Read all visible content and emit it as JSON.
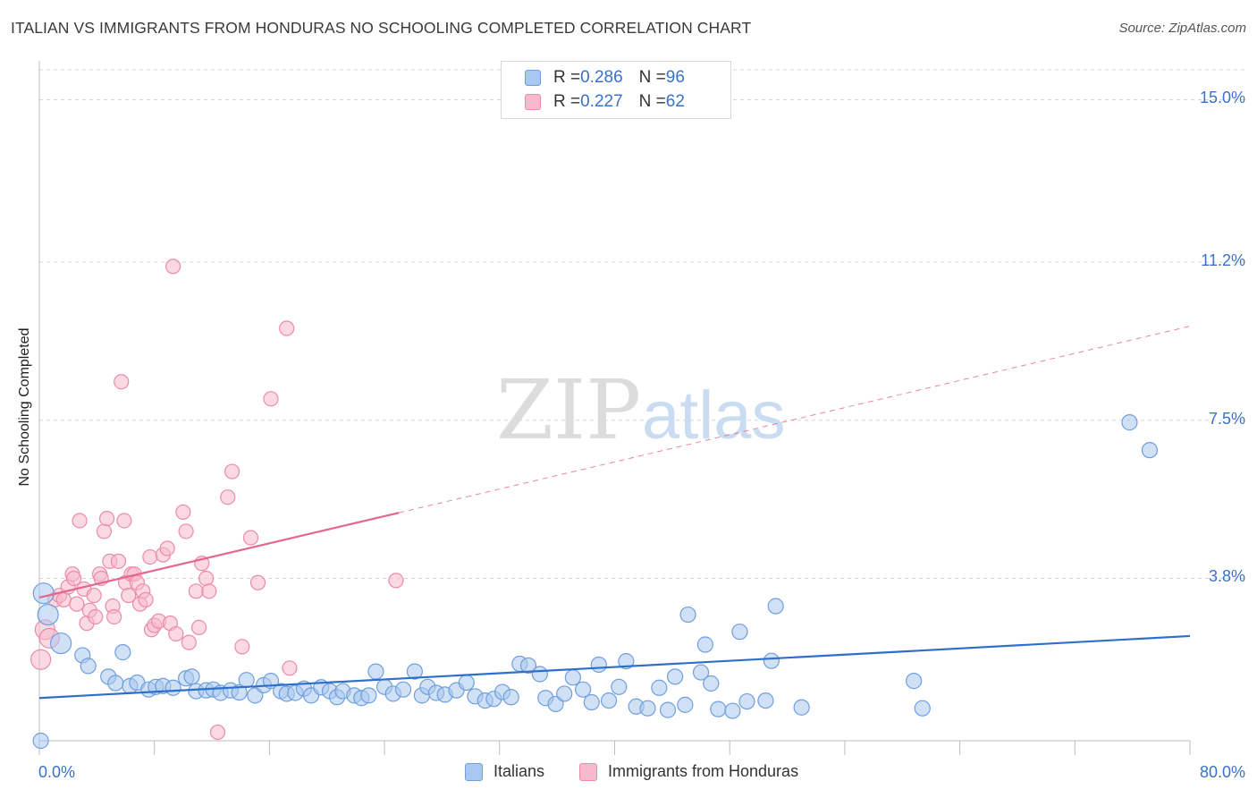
{
  "title": "ITALIAN VS IMMIGRANTS FROM HONDURAS NO SCHOOLING COMPLETED CORRELATION CHART",
  "source": "Source: ZipAtlas.com",
  "watermark": {
    "zip": "ZIP",
    "atlas": "atlas"
  },
  "legend": {
    "rows": [
      {
        "r_label": "R = ",
        "r_value": "0.286",
        "n_label": "N = ",
        "n_value": "96"
      },
      {
        "r_label": "R = ",
        "r_value": "0.227",
        "n_label": "N = ",
        "n_value": "62"
      }
    ]
  },
  "bottom_legend": {
    "italians": "Italians",
    "honduras": "Immigrants from Honduras"
  },
  "colors": {
    "italians_fill": "#a9c8ef",
    "italians_stroke": "#6f9fdc",
    "italians_line": "#2f6fcc",
    "honduras_fill": "#f7b9cc",
    "honduras_stroke": "#ec8aa9",
    "honduras_line": "#e4668f",
    "tick_text": "#3a72c8",
    "grid": "#d6d6d6"
  },
  "chart_data": {
    "type": "scatter",
    "title": "ITALIAN VS IMMIGRANTS FROM HONDURAS NO SCHOOLING COMPLETED CORRELATION CHART",
    "xlabel": "",
    "ylabel": "No Schooling Completed",
    "xlim": [
      0,
      80
    ],
    "ylim": [
      0,
      15.7
    ],
    "x_tick_labels": [
      "0.0%",
      "80.0%"
    ],
    "y_ticks": [
      3.8,
      7.5,
      11.2,
      15.0
    ],
    "y_tick_labels": [
      "3.8%",
      "7.5%",
      "11.2%",
      "15.0%"
    ],
    "grid": true,
    "series": [
      {
        "name": "Italians",
        "r": 0.286,
        "n": 96,
        "trend": {
          "x0": 0,
          "y0": 1.0,
          "x1": 80,
          "y1": 2.45,
          "dashed_from": null
        },
        "points": [
          [
            0.3,
            3.45
          ],
          [
            0.6,
            2.95
          ],
          [
            1.5,
            2.28
          ],
          [
            3.0,
            2.0
          ],
          [
            3.4,
            1.75
          ],
          [
            4.8,
            1.5
          ],
          [
            5.3,
            1.35
          ],
          [
            5.8,
            2.07
          ],
          [
            6.3,
            1.28
          ],
          [
            6.8,
            1.36
          ],
          [
            7.6,
            1.2
          ],
          [
            8.1,
            1.26
          ],
          [
            8.6,
            1.28
          ],
          [
            9.3,
            1.24
          ],
          [
            10.2,
            1.46
          ],
          [
            10.6,
            1.5
          ],
          [
            10.9,
            1.16
          ],
          [
            11.6,
            1.18
          ],
          [
            12.1,
            1.2
          ],
          [
            12.6,
            1.12
          ],
          [
            13.3,
            1.18
          ],
          [
            13.9,
            1.13
          ],
          [
            14.4,
            1.42
          ],
          [
            15.0,
            1.06
          ],
          [
            15.6,
            1.3
          ],
          [
            16.1,
            1.4
          ],
          [
            16.8,
            1.16
          ],
          [
            17.2,
            1.1
          ],
          [
            17.8,
            1.12
          ],
          [
            18.4,
            1.22
          ],
          [
            18.9,
            1.06
          ],
          [
            19.6,
            1.25
          ],
          [
            20.2,
            1.16
          ],
          [
            20.7,
            1.02
          ],
          [
            21.1,
            1.16
          ],
          [
            21.9,
            1.06
          ],
          [
            22.4,
            1.0
          ],
          [
            22.9,
            1.06
          ],
          [
            23.4,
            1.62
          ],
          [
            24.0,
            1.26
          ],
          [
            24.6,
            1.1
          ],
          [
            25.3,
            1.2
          ],
          [
            26.1,
            1.62
          ],
          [
            26.6,
            1.06
          ],
          [
            27.0,
            1.26
          ],
          [
            27.6,
            1.12
          ],
          [
            28.2,
            1.08
          ],
          [
            29.0,
            1.18
          ],
          [
            29.7,
            1.36
          ],
          [
            30.3,
            1.04
          ],
          [
            31.0,
            0.94
          ],
          [
            31.6,
            0.98
          ],
          [
            32.2,
            1.14
          ],
          [
            32.8,
            1.02
          ],
          [
            33.4,
            1.8
          ],
          [
            34.0,
            1.76
          ],
          [
            34.8,
            1.56
          ],
          [
            35.2,
            1.0
          ],
          [
            35.9,
            0.86
          ],
          [
            36.5,
            1.1
          ],
          [
            37.1,
            1.48
          ],
          [
            37.8,
            1.2
          ],
          [
            38.4,
            0.9
          ],
          [
            38.9,
            1.78
          ],
          [
            39.6,
            0.94
          ],
          [
            40.3,
            1.26
          ],
          [
            40.8,
            1.86
          ],
          [
            41.5,
            0.8
          ],
          [
            42.3,
            0.76
          ],
          [
            43.1,
            1.24
          ],
          [
            43.7,
            0.72
          ],
          [
            44.2,
            1.5
          ],
          [
            44.9,
            0.84
          ],
          [
            45.1,
            2.95
          ],
          [
            46.0,
            1.6
          ],
          [
            46.3,
            2.25
          ],
          [
            46.7,
            1.34
          ],
          [
            47.2,
            0.74
          ],
          [
            48.2,
            0.7
          ],
          [
            48.7,
            2.55
          ],
          [
            49.2,
            0.92
          ],
          [
            50.5,
            0.94
          ],
          [
            50.9,
            1.87
          ],
          [
            51.2,
            3.15
          ],
          [
            53.0,
            0.78
          ],
          [
            60.8,
            1.4
          ],
          [
            61.4,
            0.76
          ],
          [
            75.8,
            7.45
          ],
          [
            77.2,
            6.8
          ],
          [
            0.1,
            0.0
          ]
        ],
        "sizes_note": "point radii scale with population; values not printed"
      },
      {
        "name": "Immigrants from Honduras",
        "r": 0.227,
        "n": 62,
        "trend": {
          "x0": 0,
          "y0": 3.35,
          "x1": 80,
          "y1": 9.7,
          "solid_until": 25
        },
        "points": [
          [
            0.1,
            1.9
          ],
          [
            0.4,
            2.6
          ],
          [
            0.7,
            2.4
          ],
          [
            1.1,
            3.3
          ],
          [
            1.4,
            3.4
          ],
          [
            1.7,
            3.3
          ],
          [
            2.0,
            3.6
          ],
          [
            2.3,
            3.9
          ],
          [
            2.4,
            3.8
          ],
          [
            2.6,
            3.2
          ],
          [
            2.8,
            5.15
          ],
          [
            3.1,
            3.55
          ],
          [
            3.3,
            2.75
          ],
          [
            3.5,
            3.05
          ],
          [
            3.8,
            3.4
          ],
          [
            3.9,
            2.9
          ],
          [
            4.2,
            3.9
          ],
          [
            4.3,
            3.8
          ],
          [
            4.5,
            4.9
          ],
          [
            4.7,
            5.2
          ],
          [
            4.9,
            4.2
          ],
          [
            5.1,
            3.15
          ],
          [
            5.2,
            2.9
          ],
          [
            5.5,
            4.2
          ],
          [
            5.7,
            8.4
          ],
          [
            5.9,
            5.15
          ],
          [
            6.0,
            3.7
          ],
          [
            6.2,
            3.4
          ],
          [
            6.4,
            3.9
          ],
          [
            6.6,
            3.9
          ],
          [
            6.8,
            3.7
          ],
          [
            7.0,
            3.2
          ],
          [
            7.2,
            3.5
          ],
          [
            7.4,
            3.3
          ],
          [
            7.7,
            4.3
          ],
          [
            7.8,
            2.6
          ],
          [
            8.0,
            2.7
          ],
          [
            8.3,
            2.8
          ],
          [
            8.6,
            4.35
          ],
          [
            8.9,
            4.5
          ],
          [
            9.1,
            2.75
          ],
          [
            9.3,
            11.1
          ],
          [
            9.5,
            2.5
          ],
          [
            10.0,
            5.35
          ],
          [
            10.2,
            4.9
          ],
          [
            10.4,
            2.3
          ],
          [
            10.9,
            3.5
          ],
          [
            11.1,
            2.65
          ],
          [
            11.3,
            4.15
          ],
          [
            11.6,
            3.8
          ],
          [
            11.8,
            3.5
          ],
          [
            12.4,
            0.2
          ],
          [
            13.1,
            5.7
          ],
          [
            13.4,
            6.3
          ],
          [
            14.1,
            2.2
          ],
          [
            14.7,
            4.75
          ],
          [
            15.2,
            3.7
          ],
          [
            16.1,
            8.0
          ],
          [
            17.2,
            9.65
          ],
          [
            17.4,
            1.7
          ],
          [
            24.8,
            3.75
          ]
        ]
      }
    ]
  }
}
